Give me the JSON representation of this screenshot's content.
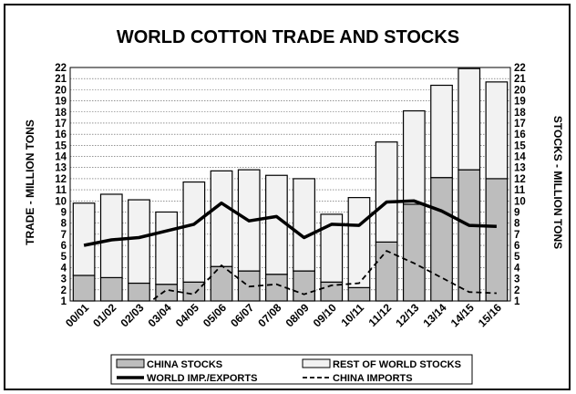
{
  "chart_data": {
    "type": "bar",
    "title": "WORLD COTTON TRADE AND STOCKS",
    "ylabel_left": "TRADE - MILLION TONS",
    "ylabel_right": "STOCKS - MILLION TONS",
    "ylim": [
      1,
      22
    ],
    "yticks": [
      "1",
      "2",
      "3",
      "4",
      "5",
      "6",
      "7",
      "8",
      "9",
      "10",
      "11",
      "12",
      "13",
      "14",
      "15",
      "16",
      "17",
      "18",
      "19",
      "20",
      "21",
      "22"
    ],
    "categories": [
      "00/01",
      "01/02",
      "02/03",
      "03/04",
      "04/05",
      "05/06",
      "06/07",
      "07/08",
      "08/09",
      "09/10",
      "10/11",
      "11/12",
      "12/13",
      "13/14",
      "14/15",
      "15/16"
    ],
    "series": [
      {
        "name": "CHINA STOCKS",
        "kind": "stacked-bar",
        "color": "#bdbdbd",
        "values": [
          3.3,
          3.1,
          2.6,
          2.5,
          2.7,
          4.1,
          3.7,
          3.4,
          3.7,
          2.7,
          2.2,
          6.3,
          9.7,
          12.1,
          12.8,
          12.0
        ]
      },
      {
        "name": "REST OF WORLD STOCKS",
        "kind": "stacked-bar",
        "color": "#f2f2f2",
        "values": [
          6.5,
          7.5,
          7.5,
          6.5,
          9.0,
          8.6,
          9.1,
          8.9,
          8.3,
          6.1,
          8.1,
          9.0,
          8.4,
          8.3,
          9.1,
          8.7
        ]
      },
      {
        "name": "WORLD IMP./EXPORTS",
        "kind": "line",
        "style": "solid",
        "values": [
          6.0,
          6.5,
          6.7,
          7.3,
          7.9,
          9.8,
          8.2,
          8.6,
          6.7,
          7.9,
          7.8,
          9.9,
          10.0,
          9.1,
          7.8,
          7.7
        ]
      },
      {
        "name": "CHINA IMPORTS",
        "kind": "line",
        "style": "dashed",
        "values": [
          0.1,
          0.1,
          0.2,
          2.0,
          1.6,
          4.2,
          2.3,
          2.5,
          1.6,
          2.4,
          2.6,
          5.5,
          4.4,
          3.1,
          1.8,
          1.7
        ]
      }
    ],
    "legend": "bottom",
    "grid": true
  }
}
